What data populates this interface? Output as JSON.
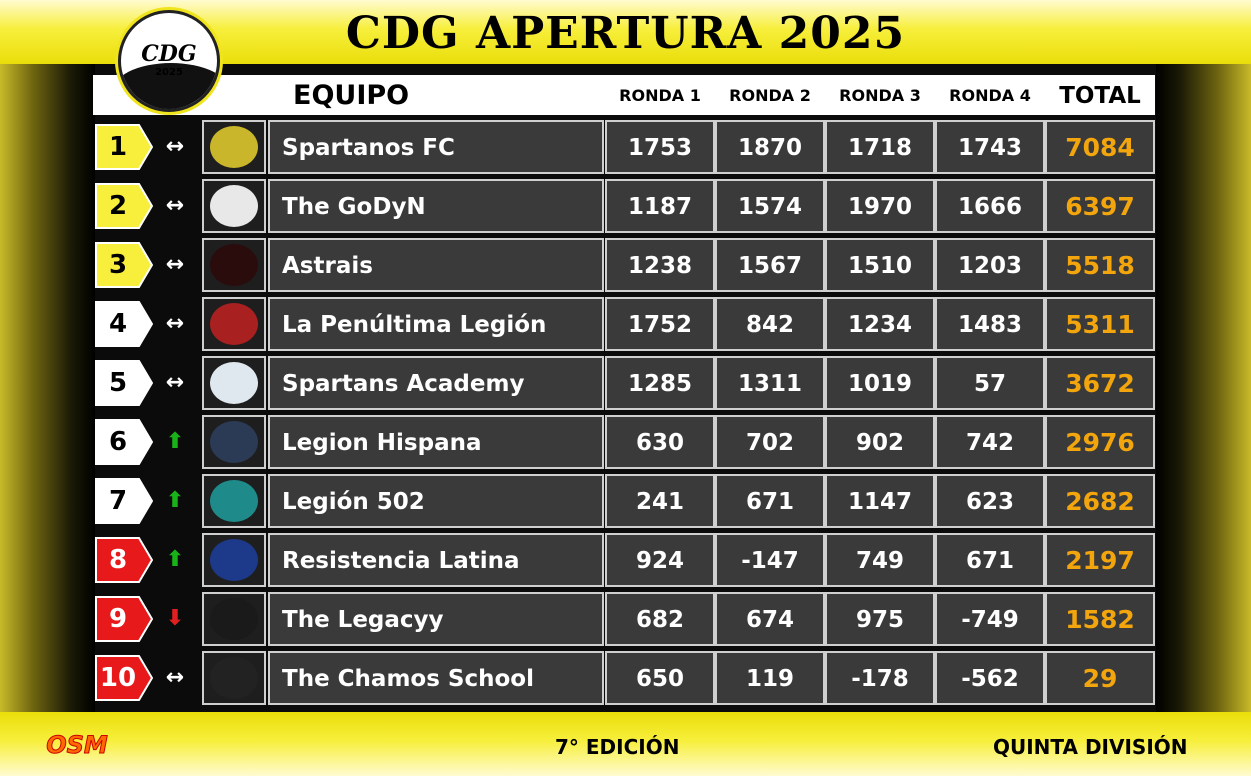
{
  "title": "CDG APERTURA 2025",
  "logo": {
    "text": "CDG",
    "year": "2025"
  },
  "header": {
    "team": "EQUIPO",
    "rounds": [
      "RONDA 1",
      "RONDA 2",
      "RONDA 3",
      "RONDA 4"
    ],
    "total": "TOTAL"
  },
  "colors": {
    "yellow": "#f7ef3c",
    "red": "#e8191b",
    "white": "#ffffff",
    "total_text": "#f2a50c",
    "row_bg": "#3a3a3a",
    "up": "#19b219",
    "down": "#e02020"
  },
  "rows": [
    {
      "pos": "1",
      "badge": "yellow",
      "trend": "same",
      "team": "Spartanos FC",
      "crest": "spartan-helmet-icon",
      "r1": "1753",
      "r2": "1870",
      "r3": "1718",
      "r4": "1743",
      "total": "7084"
    },
    {
      "pos": "2",
      "badge": "yellow",
      "trend": "same",
      "team": "The GoDyN",
      "crest": "tiger-icon",
      "r1": "1187",
      "r2": "1574",
      "r3": "1970",
      "r4": "1666",
      "total": "6397"
    },
    {
      "pos": "3",
      "badge": "yellow",
      "trend": "same",
      "team": "Astrais",
      "crest": "astrais-logo-icon",
      "r1": "1238",
      "r2": "1567",
      "r3": "1510",
      "r4": "1203",
      "total": "5518"
    },
    {
      "pos": "4",
      "badge": "white",
      "trend": "same",
      "team": "La Penúltima Legión",
      "crest": "lion-warrior-icon",
      "r1": "1752",
      "r2": "842",
      "r3": "1234",
      "r4": "1483",
      "total": "5311"
    },
    {
      "pos": "5",
      "badge": "white",
      "trend": "same",
      "team": "Spartans Academy",
      "crest": "sra-badge-icon",
      "r1": "1285",
      "r2": "1311",
      "r3": "1019",
      "r4": "57",
      "total": "3672"
    },
    {
      "pos": "6",
      "badge": "white",
      "trend": "up",
      "team": "Legion Hispana",
      "crest": "knight-emblem-icon",
      "r1": "630",
      "r2": "702",
      "r3": "902",
      "r4": "742",
      "total": "2976"
    },
    {
      "pos": "7",
      "badge": "white",
      "trend": "up",
      "team": "Legión 502",
      "crest": "quetzal-bird-icon",
      "r1": "241",
      "r2": "671",
      "r3": "1147",
      "r4": "623",
      "total": "2682"
    },
    {
      "pos": "8",
      "badge": "red",
      "trend": "up",
      "team": "Resistencia Latina",
      "crest": "rebel-wings-icon",
      "r1": "924",
      "r2": "-147",
      "r3": "749",
      "r4": "671",
      "total": "2197"
    },
    {
      "pos": "9",
      "badge": "red",
      "trend": "down",
      "team": "The Legacyy",
      "crest": "crowned-lion-icon",
      "r1": "682",
      "r2": "674",
      "r3": "975",
      "r4": "-749",
      "total": "1582"
    },
    {
      "pos": "10",
      "badge": "red",
      "trend": "same",
      "team": "The Chamos School",
      "crest": "chamos-tiger-icon",
      "r1": "650",
      "r2": "119",
      "r3": "-178",
      "r4": "-562",
      "total": "29"
    }
  ],
  "footer": {
    "brand": "OSM",
    "edition": "7° EDICIÓN",
    "division": "QUINTA DIVISIÓN"
  }
}
